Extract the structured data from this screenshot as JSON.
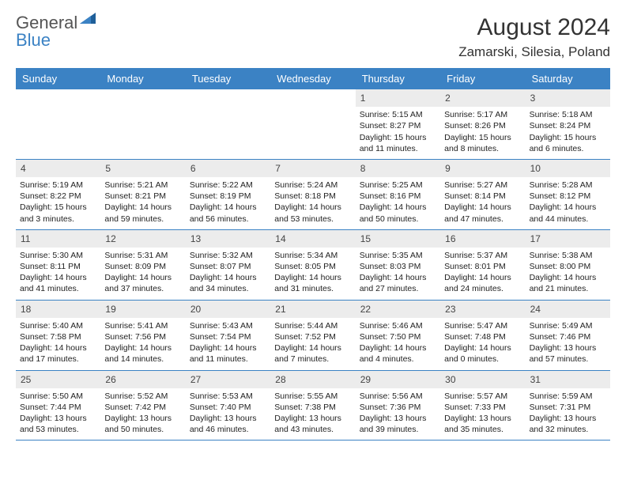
{
  "brand": {
    "part1": "General",
    "part2": "Blue"
  },
  "title": "August 2024",
  "location": "Zamarski, Silesia, Poland",
  "colors": {
    "header_bg": "#3b82c4",
    "header_text": "#ffffff",
    "daynum_bg": "#ececec",
    "body_text": "#222222",
    "page_bg": "#ffffff",
    "rule": "#3b82c4"
  },
  "typography": {
    "title_fontsize": 30,
    "location_fontsize": 17,
    "dayhead_fontsize": 13,
    "cell_fontsize": 10.5
  },
  "day_names": [
    "Sunday",
    "Monday",
    "Tuesday",
    "Wednesday",
    "Thursday",
    "Friday",
    "Saturday"
  ],
  "weeks": [
    [
      null,
      null,
      null,
      null,
      {
        "n": "1",
        "sunrise": "Sunrise: 5:15 AM",
        "sunset": "Sunset: 8:27 PM",
        "daylight": "Daylight: 15 hours and 11 minutes."
      },
      {
        "n": "2",
        "sunrise": "Sunrise: 5:17 AM",
        "sunset": "Sunset: 8:26 PM",
        "daylight": "Daylight: 15 hours and 8 minutes."
      },
      {
        "n": "3",
        "sunrise": "Sunrise: 5:18 AM",
        "sunset": "Sunset: 8:24 PM",
        "daylight": "Daylight: 15 hours and 6 minutes."
      }
    ],
    [
      {
        "n": "4",
        "sunrise": "Sunrise: 5:19 AM",
        "sunset": "Sunset: 8:22 PM",
        "daylight": "Daylight: 15 hours and 3 minutes."
      },
      {
        "n": "5",
        "sunrise": "Sunrise: 5:21 AM",
        "sunset": "Sunset: 8:21 PM",
        "daylight": "Daylight: 14 hours and 59 minutes."
      },
      {
        "n": "6",
        "sunrise": "Sunrise: 5:22 AM",
        "sunset": "Sunset: 8:19 PM",
        "daylight": "Daylight: 14 hours and 56 minutes."
      },
      {
        "n": "7",
        "sunrise": "Sunrise: 5:24 AM",
        "sunset": "Sunset: 8:18 PM",
        "daylight": "Daylight: 14 hours and 53 minutes."
      },
      {
        "n": "8",
        "sunrise": "Sunrise: 5:25 AM",
        "sunset": "Sunset: 8:16 PM",
        "daylight": "Daylight: 14 hours and 50 minutes."
      },
      {
        "n": "9",
        "sunrise": "Sunrise: 5:27 AM",
        "sunset": "Sunset: 8:14 PM",
        "daylight": "Daylight: 14 hours and 47 minutes."
      },
      {
        "n": "10",
        "sunrise": "Sunrise: 5:28 AM",
        "sunset": "Sunset: 8:12 PM",
        "daylight": "Daylight: 14 hours and 44 minutes."
      }
    ],
    [
      {
        "n": "11",
        "sunrise": "Sunrise: 5:30 AM",
        "sunset": "Sunset: 8:11 PM",
        "daylight": "Daylight: 14 hours and 41 minutes."
      },
      {
        "n": "12",
        "sunrise": "Sunrise: 5:31 AM",
        "sunset": "Sunset: 8:09 PM",
        "daylight": "Daylight: 14 hours and 37 minutes."
      },
      {
        "n": "13",
        "sunrise": "Sunrise: 5:32 AM",
        "sunset": "Sunset: 8:07 PM",
        "daylight": "Daylight: 14 hours and 34 minutes."
      },
      {
        "n": "14",
        "sunrise": "Sunrise: 5:34 AM",
        "sunset": "Sunset: 8:05 PM",
        "daylight": "Daylight: 14 hours and 31 minutes."
      },
      {
        "n": "15",
        "sunrise": "Sunrise: 5:35 AM",
        "sunset": "Sunset: 8:03 PM",
        "daylight": "Daylight: 14 hours and 27 minutes."
      },
      {
        "n": "16",
        "sunrise": "Sunrise: 5:37 AM",
        "sunset": "Sunset: 8:01 PM",
        "daylight": "Daylight: 14 hours and 24 minutes."
      },
      {
        "n": "17",
        "sunrise": "Sunrise: 5:38 AM",
        "sunset": "Sunset: 8:00 PM",
        "daylight": "Daylight: 14 hours and 21 minutes."
      }
    ],
    [
      {
        "n": "18",
        "sunrise": "Sunrise: 5:40 AM",
        "sunset": "Sunset: 7:58 PM",
        "daylight": "Daylight: 14 hours and 17 minutes."
      },
      {
        "n": "19",
        "sunrise": "Sunrise: 5:41 AM",
        "sunset": "Sunset: 7:56 PM",
        "daylight": "Daylight: 14 hours and 14 minutes."
      },
      {
        "n": "20",
        "sunrise": "Sunrise: 5:43 AM",
        "sunset": "Sunset: 7:54 PM",
        "daylight": "Daylight: 14 hours and 11 minutes."
      },
      {
        "n": "21",
        "sunrise": "Sunrise: 5:44 AM",
        "sunset": "Sunset: 7:52 PM",
        "daylight": "Daylight: 14 hours and 7 minutes."
      },
      {
        "n": "22",
        "sunrise": "Sunrise: 5:46 AM",
        "sunset": "Sunset: 7:50 PM",
        "daylight": "Daylight: 14 hours and 4 minutes."
      },
      {
        "n": "23",
        "sunrise": "Sunrise: 5:47 AM",
        "sunset": "Sunset: 7:48 PM",
        "daylight": "Daylight: 14 hours and 0 minutes."
      },
      {
        "n": "24",
        "sunrise": "Sunrise: 5:49 AM",
        "sunset": "Sunset: 7:46 PM",
        "daylight": "Daylight: 13 hours and 57 minutes."
      }
    ],
    [
      {
        "n": "25",
        "sunrise": "Sunrise: 5:50 AM",
        "sunset": "Sunset: 7:44 PM",
        "daylight": "Daylight: 13 hours and 53 minutes."
      },
      {
        "n": "26",
        "sunrise": "Sunrise: 5:52 AM",
        "sunset": "Sunset: 7:42 PM",
        "daylight": "Daylight: 13 hours and 50 minutes."
      },
      {
        "n": "27",
        "sunrise": "Sunrise: 5:53 AM",
        "sunset": "Sunset: 7:40 PM",
        "daylight": "Daylight: 13 hours and 46 minutes."
      },
      {
        "n": "28",
        "sunrise": "Sunrise: 5:55 AM",
        "sunset": "Sunset: 7:38 PM",
        "daylight": "Daylight: 13 hours and 43 minutes."
      },
      {
        "n": "29",
        "sunrise": "Sunrise: 5:56 AM",
        "sunset": "Sunset: 7:36 PM",
        "daylight": "Daylight: 13 hours and 39 minutes."
      },
      {
        "n": "30",
        "sunrise": "Sunrise: 5:57 AM",
        "sunset": "Sunset: 7:33 PM",
        "daylight": "Daylight: 13 hours and 35 minutes."
      },
      {
        "n": "31",
        "sunrise": "Sunrise: 5:59 AM",
        "sunset": "Sunset: 7:31 PM",
        "daylight": "Daylight: 13 hours and 32 minutes."
      }
    ]
  ]
}
